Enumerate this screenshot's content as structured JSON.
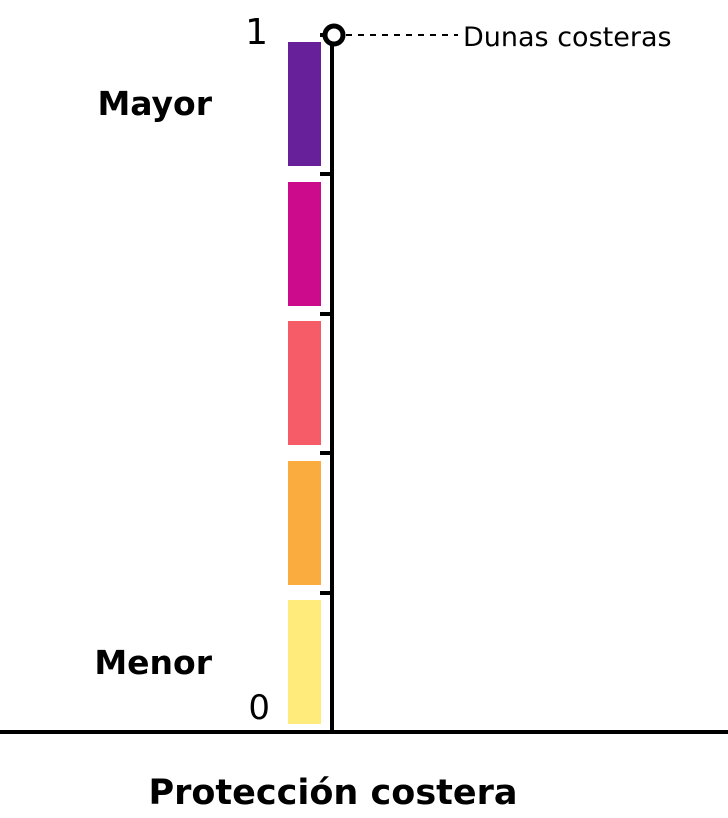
{
  "diagram": {
    "axis_label": "Protección costera",
    "top_value": "1",
    "bottom_value": "0",
    "high_label": "Mayor",
    "low_label": "Menor",
    "marker_label": "Dunas costeras",
    "marker_value": 1,
    "colors": {
      "line": "#000000",
      "bands": [
        "#68209a",
        "#cb0a8c",
        "#f65b68",
        "#faac3f",
        "#ffeb7c"
      ]
    }
  }
}
